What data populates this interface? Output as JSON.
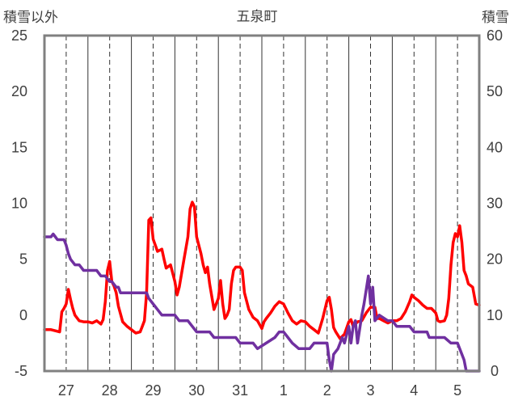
{
  "chart_data": {
    "type": "line",
    "title": "五泉町",
    "left_axis_label": "積雪以外",
    "right_axis_label": "積雪",
    "left_ylim": [
      -5,
      25
    ],
    "left_yticks": [
      "25",
      "20",
      "15",
      "10",
      "5",
      "0",
      "-5"
    ],
    "right_ylim": [
      0,
      60
    ],
    "right_yticks": [
      "60",
      "50",
      "40",
      "30",
      "20",
      "10",
      "0"
    ],
    "x_labels": [
      "27",
      "28",
      "29",
      "30",
      "31",
      "1",
      "2",
      "3",
      "4",
      "5"
    ],
    "x_range_days": [
      -0.5,
      9.5
    ],
    "grid": "solid at day boundaries, dashed at noon",
    "series": [
      {
        "axis": "left",
        "color": "#ff0000",
        "points": [
          [
            -0.5,
            -1.3
          ],
          [
            -0.35,
            -1.3
          ],
          [
            -0.25,
            -1.4
          ],
          [
            -0.15,
            -1.5
          ],
          [
            -0.1,
            0.3
          ],
          [
            -0.05,
            0.6
          ],
          [
            0.0,
            1.0
          ],
          [
            0.05,
            2.3
          ],
          [
            0.1,
            1.4
          ],
          [
            0.15,
            0.6
          ],
          [
            0.2,
            0.0
          ],
          [
            0.3,
            -0.5
          ],
          [
            0.4,
            -0.6
          ],
          [
            0.5,
            -0.6
          ],
          [
            0.6,
            -0.7
          ],
          [
            0.7,
            -0.5
          ],
          [
            0.8,
            -0.8
          ],
          [
            0.85,
            -0.4
          ],
          [
            0.9,
            1.2
          ],
          [
            0.95,
            4.0
          ],
          [
            1.0,
            4.8
          ],
          [
            1.05,
            3.0
          ],
          [
            1.1,
            2.6
          ],
          [
            1.15,
            2.0
          ],
          [
            1.2,
            0.8
          ],
          [
            1.3,
            -0.6
          ],
          [
            1.4,
            -1.0
          ],
          [
            1.5,
            -1.3
          ],
          [
            1.6,
            -1.6
          ],
          [
            1.7,
            -1.5
          ],
          [
            1.75,
            -1.0
          ],
          [
            1.8,
            -0.5
          ],
          [
            1.85,
            2.0
          ],
          [
            1.9,
            8.5
          ],
          [
            1.95,
            8.7
          ],
          [
            2.0,
            6.8
          ],
          [
            2.1,
            5.7
          ],
          [
            2.2,
            5.9
          ],
          [
            2.25,
            5.0
          ],
          [
            2.3,
            4.2
          ],
          [
            2.4,
            4.5
          ],
          [
            2.5,
            3.0
          ],
          [
            2.55,
            1.8
          ],
          [
            2.6,
            2.5
          ],
          [
            2.7,
            4.8
          ],
          [
            2.8,
            7.0
          ],
          [
            2.85,
            9.5
          ],
          [
            2.9,
            10.1
          ],
          [
            2.95,
            9.7
          ],
          [
            3.0,
            7.0
          ],
          [
            3.1,
            5.5
          ],
          [
            3.15,
            4.5
          ],
          [
            3.2,
            3.8
          ],
          [
            3.25,
            4.3
          ],
          [
            3.3,
            2.8
          ],
          [
            3.4,
            0.5
          ],
          [
            3.5,
            1.5
          ],
          [
            3.55,
            3.1
          ],
          [
            3.6,
            1.0
          ],
          [
            3.65,
            -0.3
          ],
          [
            3.7,
            0.0
          ],
          [
            3.75,
            0.5
          ],
          [
            3.8,
            2.8
          ],
          [
            3.85,
            4.0
          ],
          [
            3.9,
            4.3
          ],
          [
            4.0,
            4.3
          ],
          [
            4.05,
            4.0
          ],
          [
            4.1,
            2.0
          ],
          [
            4.2,
            0.5
          ],
          [
            4.3,
            -0.2
          ],
          [
            4.4,
            -0.5
          ],
          [
            4.5,
            -1.2
          ],
          [
            4.55,
            -0.6
          ],
          [
            4.6,
            -0.3
          ],
          [
            4.7,
            0.2
          ],
          [
            4.8,
            0.8
          ],
          [
            4.9,
            1.2
          ],
          [
            5.0,
            1.0
          ],
          [
            5.1,
            0.2
          ],
          [
            5.2,
            -0.5
          ],
          [
            5.3,
            -0.8
          ],
          [
            5.4,
            -0.5
          ],
          [
            5.5,
            -0.6
          ],
          [
            5.6,
            -1.0
          ],
          [
            5.7,
            -1.3
          ],
          [
            5.8,
            -1.6
          ],
          [
            5.9,
            -0.3
          ],
          [
            6.0,
            1.3
          ],
          [
            6.05,
            1.6
          ],
          [
            6.1,
            0.5
          ],
          [
            6.15,
            -1.1
          ],
          [
            6.2,
            -1.5
          ],
          [
            6.3,
            -2.1
          ],
          [
            6.4,
            -1.7
          ],
          [
            6.5,
            -0.6
          ],
          [
            6.55,
            -0.4
          ],
          [
            6.6,
            -1.0
          ],
          [
            6.7,
            -0.6
          ],
          [
            6.8,
            -0.5
          ],
          [
            6.9,
            0.2
          ],
          [
            7.0,
            0.7
          ],
          [
            7.1,
            0.7
          ],
          [
            7.15,
            -0.3
          ],
          [
            7.2,
            -0.3
          ],
          [
            7.3,
            -0.5
          ],
          [
            7.4,
            -0.7
          ],
          [
            7.5,
            -0.5
          ],
          [
            7.6,
            -0.5
          ],
          [
            7.7,
            -0.3
          ],
          [
            7.8,
            0.3
          ],
          [
            7.9,
            1.2
          ],
          [
            7.95,
            1.8
          ],
          [
            8.0,
            1.6
          ],
          [
            8.1,
            1.3
          ],
          [
            8.2,
            0.9
          ],
          [
            8.3,
            0.6
          ],
          [
            8.4,
            0.6
          ],
          [
            8.5,
            0.2
          ],
          [
            8.55,
            -0.5
          ],
          [
            8.6,
            -0.6
          ],
          [
            8.7,
            -0.5
          ],
          [
            8.75,
            0.0
          ],
          [
            8.8,
            1.5
          ],
          [
            8.85,
            4.5
          ],
          [
            8.9,
            6.5
          ],
          [
            8.95,
            7.3
          ],
          [
            9.0,
            7.0
          ],
          [
            9.05,
            8.0
          ],
          [
            9.1,
            6.5
          ],
          [
            9.15,
            4.0
          ],
          [
            9.2,
            3.5
          ],
          [
            9.25,
            2.8
          ],
          [
            9.35,
            2.5
          ],
          [
            9.42,
            1.0
          ],
          [
            9.5,
            0.9
          ]
        ]
      },
      {
        "axis": "right",
        "color": "#7030a0",
        "points": [
          [
            -0.5,
            24
          ],
          [
            -0.35,
            24
          ],
          [
            -0.3,
            24.5
          ],
          [
            -0.25,
            24
          ],
          [
            -0.2,
            23.5
          ],
          [
            -0.05,
            23.5
          ],
          [
            0.0,
            22.5
          ],
          [
            0.05,
            21
          ],
          [
            0.1,
            20
          ],
          [
            0.2,
            19
          ],
          [
            0.3,
            19
          ],
          [
            0.4,
            18
          ],
          [
            0.7,
            18
          ],
          [
            0.8,
            17
          ],
          [
            0.9,
            17
          ],
          [
            1.0,
            16
          ],
          [
            1.05,
            16
          ],
          [
            1.15,
            15
          ],
          [
            1.2,
            15
          ],
          [
            1.25,
            14
          ],
          [
            1.85,
            14
          ],
          [
            1.9,
            13
          ],
          [
            2.0,
            12
          ],
          [
            2.1,
            11
          ],
          [
            2.2,
            10
          ],
          [
            2.5,
            10
          ],
          [
            2.6,
            9
          ],
          [
            2.8,
            9
          ],
          [
            2.9,
            8
          ],
          [
            3.0,
            7
          ],
          [
            3.3,
            7
          ],
          [
            3.4,
            6
          ],
          [
            3.9,
            6
          ],
          [
            4.0,
            5
          ],
          [
            4.3,
            5
          ],
          [
            4.4,
            4
          ],
          [
            4.6,
            5
          ],
          [
            4.8,
            6
          ],
          [
            4.9,
            7
          ],
          [
            5.0,
            7
          ],
          [
            5.1,
            6
          ],
          [
            5.2,
            5
          ],
          [
            5.35,
            4
          ],
          [
            5.6,
            4
          ],
          [
            5.7,
            5
          ],
          [
            6.0,
            5
          ],
          [
            6.05,
            2
          ],
          [
            6.1,
            0
          ],
          [
            6.15,
            3
          ],
          [
            6.25,
            4
          ],
          [
            6.35,
            6
          ],
          [
            6.4,
            5
          ],
          [
            6.5,
            8
          ],
          [
            6.55,
            5
          ],
          [
            6.6,
            8
          ],
          [
            6.65,
            9
          ],
          [
            6.7,
            5
          ],
          [
            6.8,
            10
          ],
          [
            6.85,
            12
          ],
          [
            6.95,
            17
          ],
          [
            7.0,
            12
          ],
          [
            7.05,
            15
          ],
          [
            7.1,
            9
          ],
          [
            7.2,
            10
          ],
          [
            7.4,
            9
          ],
          [
            7.5,
            9
          ],
          [
            7.6,
            8
          ],
          [
            7.9,
            8
          ],
          [
            8.0,
            7
          ],
          [
            8.3,
            7
          ],
          [
            8.35,
            6
          ],
          [
            8.7,
            6
          ],
          [
            8.85,
            5
          ],
          [
            9.0,
            5
          ],
          [
            9.05,
            4
          ],
          [
            9.15,
            2
          ],
          [
            9.2,
            0
          ],
          [
            9.5,
            0
          ]
        ]
      }
    ]
  }
}
